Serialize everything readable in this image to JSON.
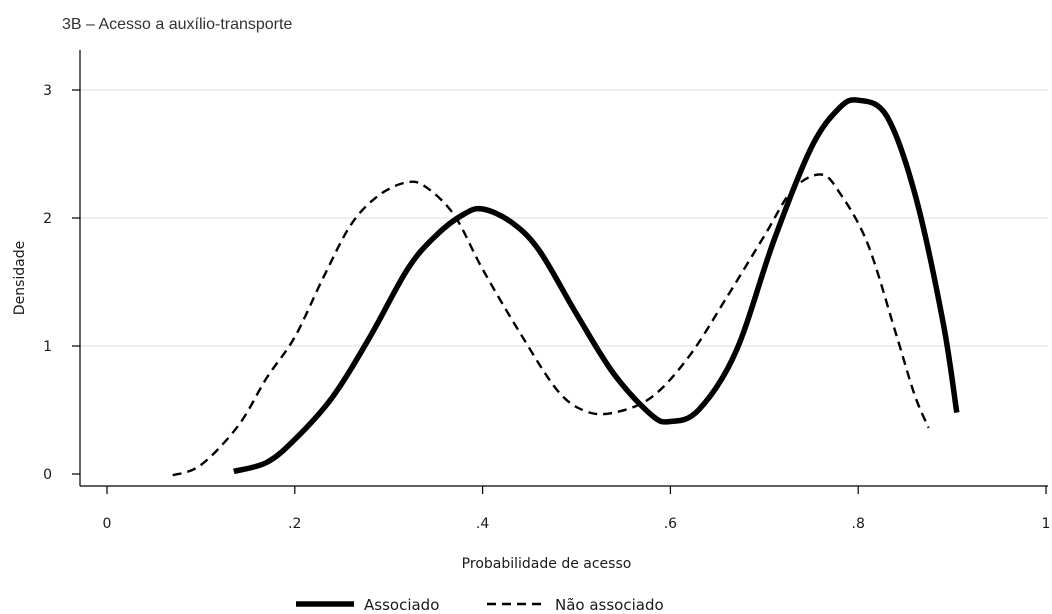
{
  "chart_data": {
    "type": "line",
    "title": "3B – Acesso a auxílio-transporte",
    "xlabel": "Probabilidade de acesso",
    "ylabel": "Densidade",
    "xlim": [
      0,
      1
    ],
    "ylim": [
      0,
      3
    ],
    "xticks": [
      0,
      0.2,
      0.4,
      0.6,
      0.8,
      1
    ],
    "xtick_labels": [
      "0",
      ".2",
      ".4",
      ".6",
      ".8",
      "1"
    ],
    "yticks": [
      0,
      1,
      2,
      3
    ],
    "ytick_labels": [
      "0",
      "1",
      "2",
      "3"
    ],
    "grid": true,
    "legend_position": "bottom",
    "series": [
      {
        "name": "Associado",
        "style": "solid-thick",
        "color": "#000000",
        "points": [
          [
            0.135,
            0.02
          ],
          [
            0.17,
            0.09
          ],
          [
            0.2,
            0.27
          ],
          [
            0.24,
            0.6
          ],
          [
            0.28,
            1.07
          ],
          [
            0.32,
            1.6
          ],
          [
            0.35,
            1.86
          ],
          [
            0.38,
            2.03
          ],
          [
            0.4,
            2.07
          ],
          [
            0.43,
            1.97
          ],
          [
            0.46,
            1.75
          ],
          [
            0.5,
            1.25
          ],
          [
            0.54,
            0.78
          ],
          [
            0.58,
            0.46
          ],
          [
            0.6,
            0.41
          ],
          [
            0.63,
            0.5
          ],
          [
            0.67,
            0.96
          ],
          [
            0.71,
            1.82
          ],
          [
            0.75,
            2.55
          ],
          [
            0.78,
            2.86
          ],
          [
            0.8,
            2.92
          ],
          [
            0.83,
            2.8
          ],
          [
            0.86,
            2.2
          ],
          [
            0.89,
            1.2
          ],
          [
            0.905,
            0.48
          ]
        ]
      },
      {
        "name": "Não associado",
        "style": "dashed",
        "color": "#000000",
        "points": [
          [
            0.07,
            -0.01
          ],
          [
            0.1,
            0.07
          ],
          [
            0.14,
            0.38
          ],
          [
            0.17,
            0.75
          ],
          [
            0.2,
            1.07
          ],
          [
            0.23,
            1.53
          ],
          [
            0.26,
            1.95
          ],
          [
            0.29,
            2.18
          ],
          [
            0.32,
            2.28
          ],
          [
            0.34,
            2.24
          ],
          [
            0.37,
            2.02
          ],
          [
            0.4,
            1.6
          ],
          [
            0.44,
            1.1
          ],
          [
            0.48,
            0.65
          ],
          [
            0.51,
            0.49
          ],
          [
            0.54,
            0.48
          ],
          [
            0.58,
            0.6
          ],
          [
            0.62,
            0.92
          ],
          [
            0.66,
            1.38
          ],
          [
            0.7,
            1.86
          ],
          [
            0.73,
            2.22
          ],
          [
            0.76,
            2.34
          ],
          [
            0.78,
            2.2
          ],
          [
            0.81,
            1.8
          ],
          [
            0.84,
            1.1
          ],
          [
            0.86,
            0.62
          ],
          [
            0.875,
            0.36
          ]
        ]
      }
    ]
  }
}
